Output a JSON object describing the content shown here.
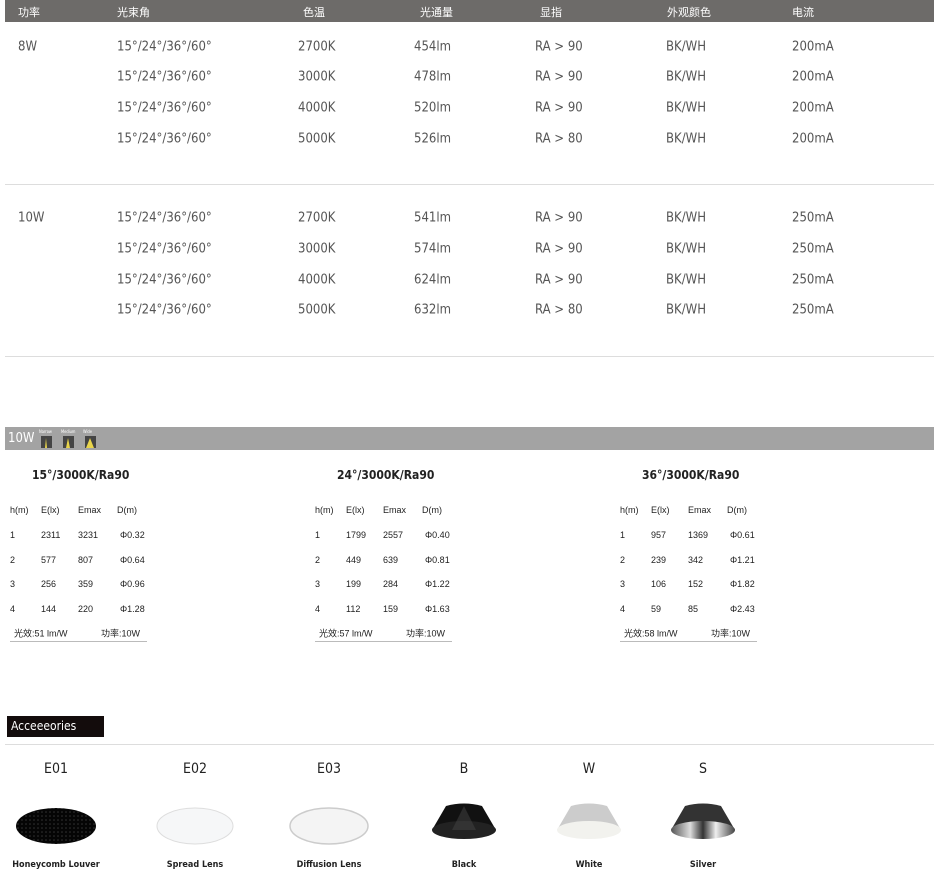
{
  "spec_table": {
    "headers": [
      "功率",
      "光束角",
      "色温",
      "光通量",
      "显指",
      "外观颜色",
      "电流"
    ],
    "groups": [
      {
        "power": "8W",
        "rows": [
          [
            "15°/24°/36°/60°",
            "2700K",
            "454lm",
            "RA > 90",
            "BK/WH",
            "200mA"
          ],
          [
            "15°/24°/36°/60°",
            "3000K",
            "478lm",
            "RA > 90",
            "BK/WH",
            "200mA"
          ],
          [
            "15°/24°/36°/60°",
            "4000K",
            "520lm",
            "RA > 90",
            "BK/WH",
            "200mA"
          ],
          [
            "15°/24°/36°/60°",
            "5000K",
            "526lm",
            "RA > 80",
            "BK/WH",
            "200mA"
          ]
        ]
      },
      {
        "power": "10W",
        "rows": [
          [
            "15°/24°/36°/60°",
            "2700K",
            "541lm",
            "RA > 90",
            "BK/WH",
            "250mA"
          ],
          [
            "15°/24°/36°/60°",
            "3000K",
            "574lm",
            "RA > 90",
            "BK/WH",
            "250mA"
          ],
          [
            "15°/24°/36°/60°",
            "4000K",
            "624lm",
            "RA > 90",
            "BK/WH",
            "250mA"
          ],
          [
            "15°/24°/36°/60°",
            "5000K",
            "632lm",
            "RA > 80",
            "BK/WH",
            "250mA"
          ]
        ]
      }
    ]
  },
  "photometric": {
    "bar_label": "10W",
    "beam_icons": [
      "Narrow",
      "Medium",
      "Wide"
    ],
    "columns": [
      "h(m)",
      "E(lx)",
      "Emax",
      "D(m)"
    ],
    "tables": [
      {
        "title": "15°/3000K/Ra90",
        "rows": [
          [
            "1",
            "2311",
            "3231",
            "Φ0.32"
          ],
          [
            "2",
            "577",
            "807",
            "Φ0.64"
          ],
          [
            "3",
            "256",
            "359",
            "Φ0.96"
          ],
          [
            "4",
            "144",
            "220",
            "Φ1.28"
          ]
        ],
        "efficacy": "光效:51 lm/W",
        "power": "功率:10W"
      },
      {
        "title": "24°/3000K/Ra90",
        "rows": [
          [
            "1",
            "1799",
            "2557",
            "Φ0.40"
          ],
          [
            "2",
            "449",
            "639",
            "Φ0.81"
          ],
          [
            "3",
            "199",
            "284",
            "Φ1.22"
          ],
          [
            "4",
            "112",
            "159",
            "Φ1.63"
          ]
        ],
        "efficacy": "光效:57 lm/W",
        "power": "功率:10W"
      },
      {
        "title": "36°/3000K/Ra90",
        "rows": [
          [
            "1",
            "957",
            "1369",
            "Φ0.61"
          ],
          [
            "2",
            "239",
            "342",
            "Φ1.21"
          ],
          [
            "3",
            "106",
            "152",
            "Φ1.82"
          ],
          [
            "4",
            "59",
            "85",
            "Φ2.43"
          ]
        ],
        "efficacy": "光效:58 lm/W",
        "power": "功率:10W"
      }
    ]
  },
  "accessories": {
    "label": "Acceeeories",
    "items": [
      {
        "code": "E01",
        "name": "Honeycomb Louver"
      },
      {
        "code": "E02",
        "name": "Spread Lens"
      },
      {
        "code": "E03",
        "name": "Diffusion Lens"
      },
      {
        "code": "B",
        "name": "Black"
      },
      {
        "code": "W",
        "name": "White"
      },
      {
        "code": "S",
        "name": "Silver"
      }
    ]
  }
}
